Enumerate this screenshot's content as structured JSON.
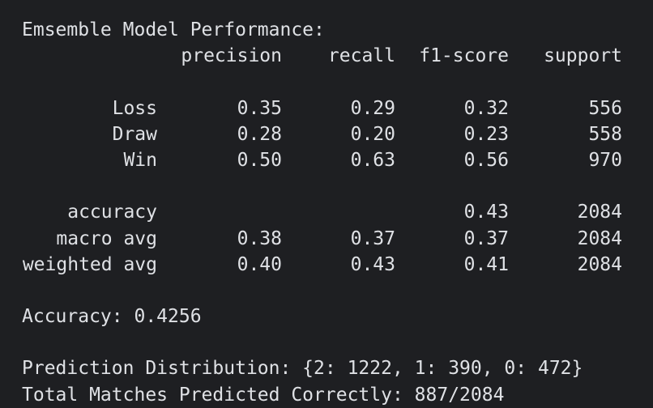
{
  "console": {
    "title": "Emsemble Model Performance:",
    "headers": {
      "precision": "precision",
      "recall": "recall",
      "f1": "f1-score",
      "support": "support"
    },
    "classes": [
      {
        "label": "Loss",
        "precision": "0.35",
        "recall": "0.29",
        "f1": "0.32",
        "support": "556"
      },
      {
        "label": "Draw",
        "precision": "0.28",
        "recall": "0.20",
        "f1": "0.23",
        "support": "558"
      },
      {
        "label": "Win",
        "precision": "0.50",
        "recall": "0.63",
        "f1": "0.56",
        "support": "970"
      }
    ],
    "summary": [
      {
        "label": "accuracy",
        "precision": "",
        "recall": "",
        "f1": "0.43",
        "support": "2084"
      },
      {
        "label": "macro avg",
        "precision": "0.38",
        "recall": "0.37",
        "f1": "0.37",
        "support": "2084"
      },
      {
        "label": "weighted avg",
        "precision": "0.40",
        "recall": "0.43",
        "f1": "0.41",
        "support": "2084"
      }
    ],
    "accuracy_line": "Accuracy: 0.4256",
    "distribution_line": "Prediction Distribution: {2: 1222, 1: 390, 0: 472}",
    "total_line": "Total Matches Predicted Correctly: 887/2084"
  }
}
